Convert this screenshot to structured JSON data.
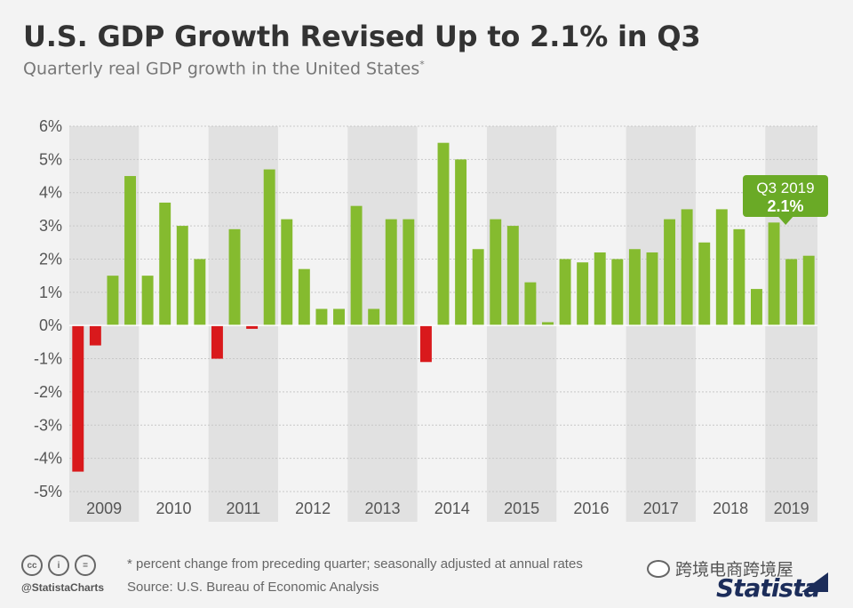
{
  "header": {
    "title": "U.S. GDP Growth Revised Up to 2.1% in Q3",
    "subtitle": "Quarterly real GDP growth in the United States",
    "subtitle_mark": "*"
  },
  "footer": {
    "handle": "@StatistaCharts",
    "note": "* percent change from preceding quarter; seasonally adjusted at annual rates",
    "source": "Source: U.S. Bureau of Economic Analysis",
    "logo": "Statista",
    "watermark": "跨境电商跨境屋",
    "license_icons": [
      "cc-icon",
      "by-icon",
      "nd-icon"
    ]
  },
  "colors": {
    "positive": "#85bb2f",
    "negative": "#d9191c",
    "band": "#e1e1e1",
    "callout": "#6aaa26"
  },
  "chart_data": {
    "type": "bar",
    "ylim": [
      -5,
      6
    ],
    "yticks": [
      "-5%",
      "-4%",
      "-3%",
      "-2%",
      "-1%",
      "0%",
      "1%",
      "2%",
      "3%",
      "4%",
      "5%",
      "6%"
    ],
    "years": [
      "2009",
      "2010",
      "2011",
      "2012",
      "2013",
      "2014",
      "2015",
      "2016",
      "2017",
      "2018",
      "2019"
    ],
    "quarters_per_year": [
      4,
      4,
      4,
      4,
      4,
      4,
      4,
      4,
      4,
      4,
      3
    ],
    "values": [
      -4.4,
      -0.6,
      1.5,
      4.5,
      1.5,
      3.7,
      3.0,
      2.0,
      -1.0,
      2.9,
      -0.1,
      4.7,
      3.2,
      1.7,
      0.5,
      0.5,
      3.6,
      0.5,
      3.2,
      3.2,
      -1.1,
      5.5,
      5.0,
      2.3,
      3.2,
      3.0,
      1.3,
      0.1,
      2.0,
      1.9,
      2.2,
      2.0,
      2.3,
      2.2,
      3.2,
      3.5,
      2.5,
      3.5,
      2.9,
      1.1,
      3.1,
      2.0,
      2.1
    ],
    "grid": true,
    "callout": {
      "label": "Q3 2019",
      "value": "2.1%"
    }
  }
}
